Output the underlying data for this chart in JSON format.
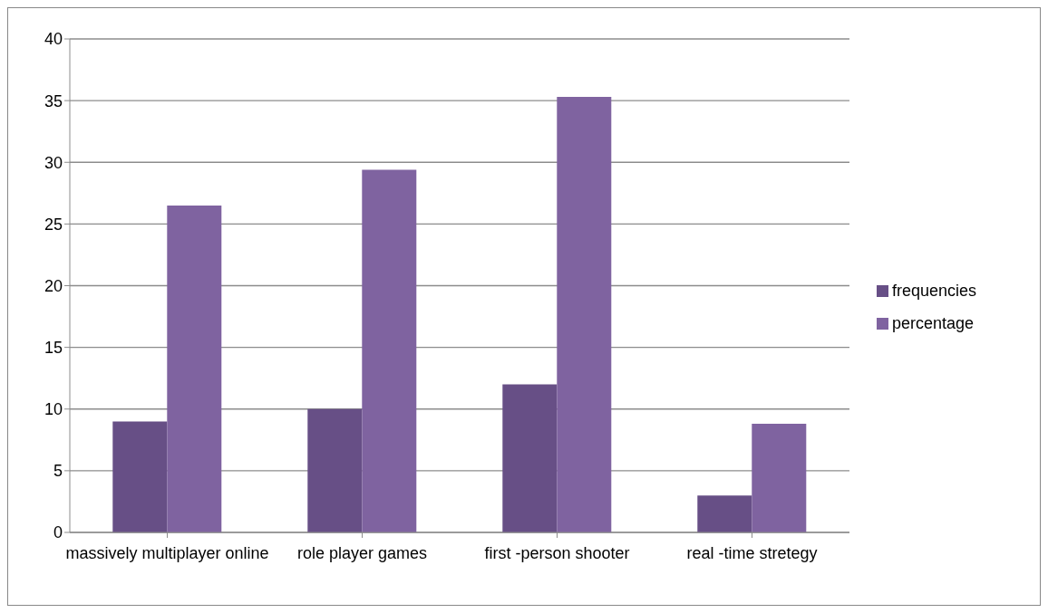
{
  "chart_data": {
    "type": "bar",
    "categories": [
      "massively multiplayer online",
      "role player games",
      "first -person shooter",
      "real -time stretegy"
    ],
    "series": [
      {
        "name": "frequencies",
        "color": "#674f86",
        "values": [
          9,
          10,
          12,
          3
        ]
      },
      {
        "name": "percentage",
        "color": "#7f63a0",
        "values": [
          26.5,
          29.4,
          35.3,
          8.8
        ]
      }
    ],
    "ylim": [
      0,
      40
    ],
    "yticks": [
      0,
      5,
      10,
      15,
      20,
      25,
      30,
      35,
      40
    ],
    "grid": "y",
    "legend": "right"
  }
}
